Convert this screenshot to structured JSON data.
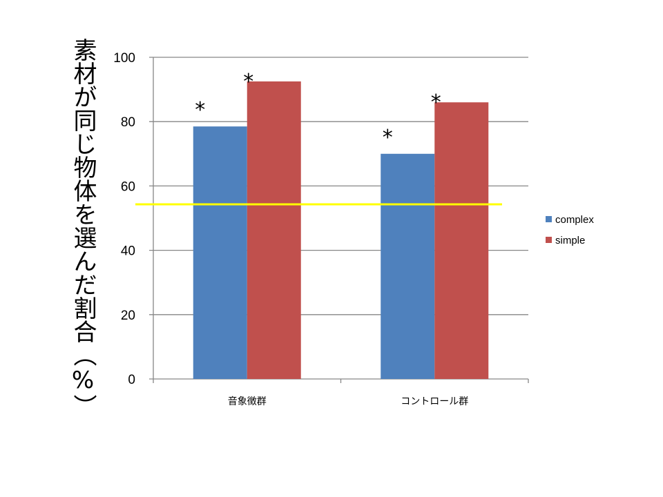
{
  "chart_data": {
    "type": "bar",
    "title": "",
    "xlabel": "",
    "ylabel": "素材が同じ物体を選んだ割合（%）",
    "ylim": [
      0,
      100
    ],
    "yticks": [
      0,
      20,
      40,
      60,
      80,
      100
    ],
    "grid": true,
    "categories": [
      "音象徴群",
      "コントロール群"
    ],
    "series": [
      {
        "name": "complex",
        "color": "#4F81BD",
        "values": [
          78.5,
          70.0
        ]
      },
      {
        "name": "simple",
        "color": "#C0504D",
        "values": [
          92.5,
          86.0
        ]
      }
    ],
    "reference_line": {
      "value": 54.3,
      "color": "#FFFF00"
    },
    "annotations": [
      {
        "text": "*",
        "category": 0,
        "series": 0
      },
      {
        "text": "*",
        "category": 0,
        "series": 1
      },
      {
        "text": "*",
        "category": 1,
        "series": 0
      },
      {
        "text": "*",
        "category": 1,
        "series": 1
      }
    ],
    "legend": "right"
  }
}
